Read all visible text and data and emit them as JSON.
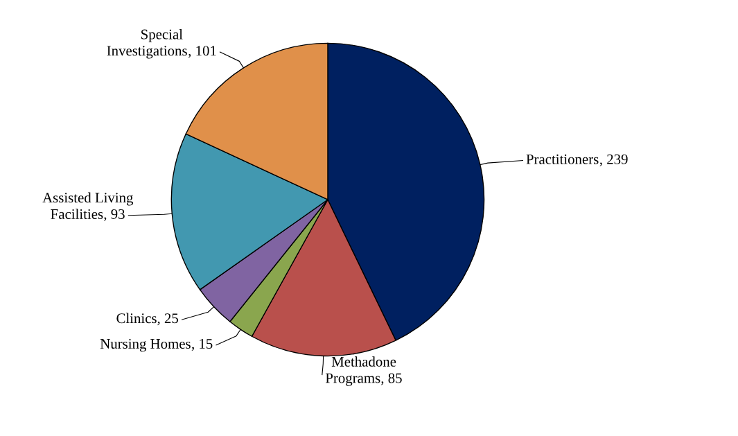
{
  "chart_data": {
    "type": "pie",
    "categories": [
      "Practitioners",
      "Methadone Programs",
      "Nursing Homes",
      "Clinics",
      "Assisted Living Facilities",
      "Special Investigations"
    ],
    "values": [
      239,
      85,
      15,
      25,
      93,
      101
    ],
    "colors": [
      "#002060",
      "#b9504c",
      "#8aa64e",
      "#8064a2",
      "#4298b0",
      "#e0904a"
    ],
    "value_labels": [
      ", 239",
      ", 85",
      ", 15",
      ", 25",
      ", 93",
      ", 101"
    ]
  }
}
